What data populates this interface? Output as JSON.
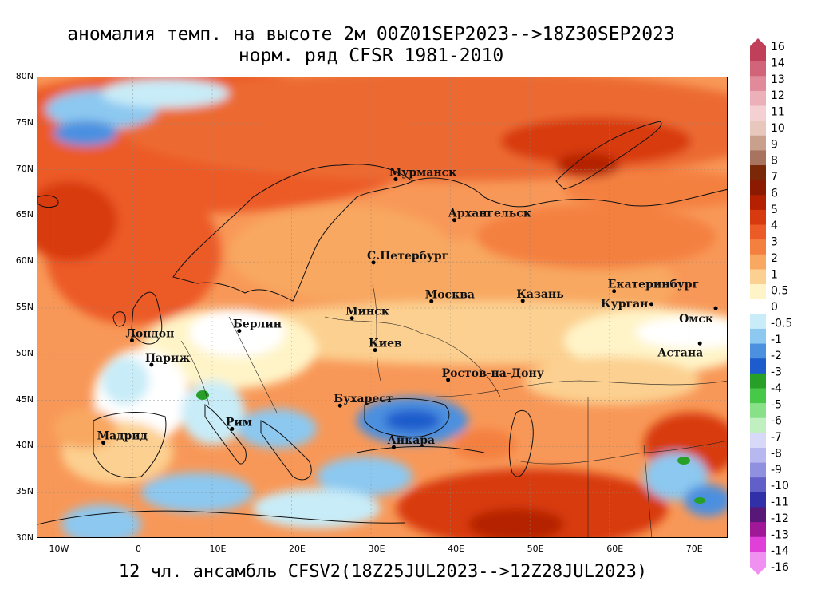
{
  "title": {
    "line1": "аномалия темп. на высоте 2м 00Z01SEP2023-->18Z30SEP2023",
    "line2": "норм. ряд CFSR 1981-2010"
  },
  "footer": "12 чл. ансамбль CFSV2(18Z25JUL2023-->12Z28JUL2023)",
  "lat_labels": [
    "80N",
    "75N",
    "70N",
    "65N",
    "60N",
    "55N",
    "50N",
    "45N",
    "40N",
    "35N",
    "30N"
  ],
  "lon_labels": [
    "10W",
    "0",
    "10E",
    "20E",
    "30E",
    "40E",
    "50E",
    "60E",
    "70E"
  ],
  "cities": [
    {
      "name": "Мурманск",
      "lon": 33.1,
      "lat": 68.97
    },
    {
      "name": "Архангельск",
      "lon": 40.5,
      "lat": 64.54
    },
    {
      "name": "С.Петербург",
      "lon": 30.3,
      "lat": 59.94
    },
    {
      "name": "Москва",
      "lon": 37.6,
      "lat": 55.75
    },
    {
      "name": "Казань",
      "lon": 49.1,
      "lat": 55.79
    },
    {
      "name": "Екатеринбург",
      "lon": 60.6,
      "lat": 56.84
    },
    {
      "name": "Курган",
      "lon": 65.3,
      "lat": 55.44
    },
    {
      "name": "Омск",
      "lon": 73.4,
      "lat": 54.99
    },
    {
      "name": "Астана",
      "lon": 71.4,
      "lat": 51.17
    },
    {
      "name": "Минск",
      "lon": 27.6,
      "lat": 53.9
    },
    {
      "name": "Берлин",
      "lon": 13.4,
      "lat": 52.52
    },
    {
      "name": "Лондон",
      "lon": -0.1,
      "lat": 51.5
    },
    {
      "name": "Париж",
      "lon": 2.35,
      "lat": 48.86
    },
    {
      "name": "Киев",
      "lon": 30.5,
      "lat": 50.45
    },
    {
      "name": "Ростов-на-Дону",
      "lon": 39.7,
      "lat": 47.23
    },
    {
      "name": "Бухарест",
      "lon": 26.1,
      "lat": 44.43
    },
    {
      "name": "Рим",
      "lon": 12.5,
      "lat": 41.9
    },
    {
      "name": "Мадрид",
      "lon": -3.7,
      "lat": 40.42
    },
    {
      "name": "Анкара",
      "lon": 32.85,
      "lat": 39.93
    }
  ],
  "colorbar": {
    "labels": [
      "16",
      "14",
      "13",
      "12",
      "11",
      "10",
      "9",
      "8",
      "7",
      "6",
      "5",
      "4",
      "3",
      "2",
      "1",
      "0.5",
      "0",
      "-0.5",
      "-1",
      "-2",
      "-3",
      "-4",
      "-5",
      "-6",
      "-7",
      "-8",
      "-9",
      "-10",
      "-11",
      "-12",
      "-13",
      "-14",
      "-16"
    ],
    "colors": [
      "#c0405a",
      "#d2647a",
      "#e08a9a",
      "#ecb0b8",
      "#f4d0d2",
      "#e8c8bc",
      "#c8a08c",
      "#a87460",
      "#7a2808",
      "#8c1a00",
      "#b42000",
      "#d83a10",
      "#ec5a28",
      "#f48040",
      "#f8a860",
      "#fcd090",
      "#fff4c8",
      "#ffffff",
      "#c8ecf8",
      "#8cc8f0",
      "#4c90e0",
      "#1c5ccc",
      "#28a028",
      "#48c848",
      "#88e088",
      "#c0f0c0",
      "#d8d8f8",
      "#b8b8f0",
      "#9090e0",
      "#6060c8",
      "#3030a8",
      "#581878",
      "#a01898",
      "#e040d8",
      "#f090f0"
    ]
  }
}
